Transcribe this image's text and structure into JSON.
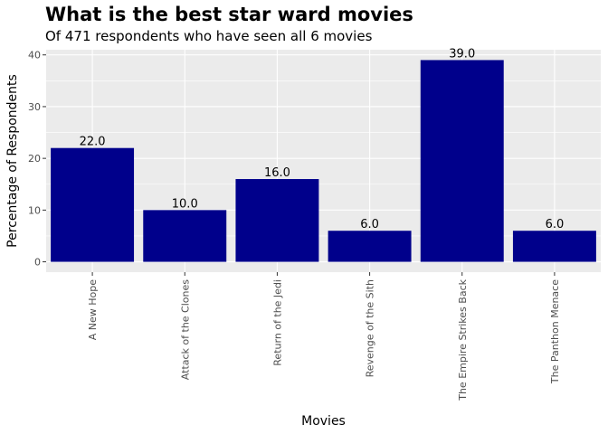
{
  "chart_data": {
    "type": "bar",
    "title": "What is the best star ward movies",
    "subtitle": "Of 471 respondents who have seen all 6 movies",
    "xlabel": "Movies",
    "ylabel": "Percentage of Respondents",
    "categories": [
      "A New Hope",
      "Attack of the Clones",
      "Return of the Jedi",
      "Revenge of the Sith",
      "The Empire Strikes Back",
      "The Panthon Menace"
    ],
    "values": [
      22.0,
      10.0,
      16.0,
      6.0,
      39.0,
      6.0
    ],
    "value_labels": [
      "22.0",
      "10.0",
      "16.0",
      "6.0",
      "39.0",
      "6.0"
    ],
    "ylim": [
      -2,
      41
    ],
    "yticks": [
      0,
      10,
      20,
      30,
      40
    ],
    "grid": true,
    "legend": "none",
    "bar_color": "#00008B",
    "panel_color": "#EBEBEB"
  }
}
